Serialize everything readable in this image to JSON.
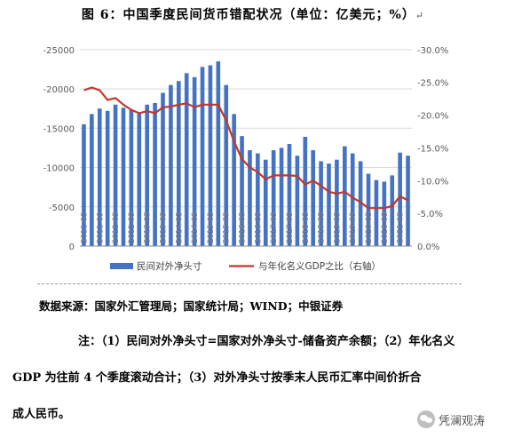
{
  "figure": {
    "title": "图 6：中国季度民间货币错配状况（单位：亿美元；%）",
    "return_mark": "↵"
  },
  "source": "数据来源：国家外汇管理局；国家统计局；WIND；中银证券",
  "notes": {
    "line1": "注：（1）民间对外净头寸=国家对外净头寸-储备资产余额；（2）年化名义",
    "line2": "GDP 为往前 4 个季度滚动合计；（3）对外净头寸按季末人民币汇率中间价折合",
    "line3": "成人民币。"
  },
  "watermark": "凭澜观涛",
  "chart_data": {
    "type": "bar",
    "colors": {
      "bar": "#4472C4",
      "line": "#C0392B",
      "axis": "#888888",
      "grid": "#d9d9d9",
      "text": "#595959"
    },
    "categories": [
      "2011-03",
      "2011-06",
      "2011-09",
      "2011-12",
      "2012-03",
      "2012-06",
      "2012-09",
      "2012-12",
      "2013-03",
      "2013-06",
      "2013-09",
      "2013-12",
      "2014-03",
      "2014-06",
      "2014-09",
      "2014-12",
      "2015-03",
      "2015-06",
      "2015-09",
      "2015-12",
      "2016-03",
      "2016-06",
      "2016-09",
      "2016-12",
      "2017-03",
      "2017-06",
      "2017-09",
      "2017-12",
      "2018-03",
      "2018-06",
      "2018-09",
      "2018-12",
      "2019-03",
      "2019-06",
      "2019-09",
      "2019-12",
      "2020-03",
      "2020-06",
      "2020-09",
      "2020-12",
      "2021-03",
      "2021-06"
    ],
    "x_tick_labels": [
      "2011-03",
      "2011-09",
      "2012-03",
      "2012-09",
      "2013-03",
      "2013-09",
      "2014-03",
      "2014-09",
      "2015-03",
      "2015-09",
      "2016-03",
      "2016-09",
      "2017-03",
      "2017-09",
      "2018-03",
      "2018-09",
      "2019-03",
      "2019-09",
      "2020-03",
      "2020-09",
      "2021-03"
    ],
    "y_left": {
      "ticks": [
        "-25000",
        "-20000",
        "-15000",
        "-10000",
        "-5000",
        "0"
      ],
      "range": [
        0,
        -26000
      ],
      "reversed": true
    },
    "y_right": {
      "ticks": [
        "-30.0%",
        "-25.0%",
        "-20.0%",
        "-15.0%",
        "-10.0%",
        "-5.0%",
        "0.0%"
      ],
      "range": [
        0,
        -31.2
      ],
      "reversed": true
    },
    "series": [
      {
        "name": "民间对外净头寸",
        "type": "bar",
        "axis": "left",
        "values": [
          -15500,
          -16800,
          -17500,
          -17200,
          -18000,
          -17600,
          -17300,
          -17000,
          -18000,
          -18200,
          -19500,
          -20500,
          -21000,
          -22000,
          -21500,
          -22800,
          -23000,
          -23500,
          -20500,
          -16800,
          -14000,
          -12200,
          -11800,
          -11000,
          -12200,
          -12500,
          -13000,
          -11500,
          -13900,
          -12200,
          -10800,
          -10500,
          -11000,
          -12700,
          -11800,
          -10800,
          -9200,
          -8400,
          -8200,
          -9000,
          -11900,
          -11500
        ]
      },
      {
        "name": "与年化名义GDP之比（右轴）",
        "type": "line",
        "axis": "right",
        "values": [
          -23.8,
          -24.2,
          -23.8,
          -22.3,
          -22.6,
          -21.6,
          -20.8,
          -20.3,
          -20.6,
          -20.3,
          -21.2,
          -21.3,
          -21.6,
          -21.8,
          -21.2,
          -21.6,
          -21.6,
          -21.6,
          -19.2,
          -16.0,
          -13.3,
          -12.0,
          -11.3,
          -10.2,
          -10.8,
          -10.8,
          -10.8,
          -10.7,
          -9.4,
          -10.0,
          -9.2,
          -8.3,
          -8.0,
          -8.3,
          -7.4,
          -6.7,
          -5.8,
          -5.8,
          -5.8,
          -6.1,
          -7.6,
          -7.0
        ]
      }
    ],
    "legend_position": "bottom",
    "grid": true
  }
}
